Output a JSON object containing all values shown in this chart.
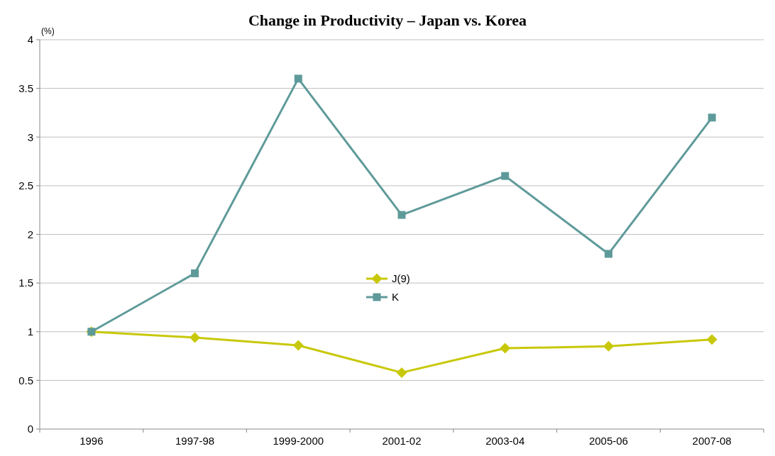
{
  "chart_data": {
    "type": "line",
    "title": "Change in Productivity – Japan vs. Korea",
    "ylabel": "(%)",
    "categories": [
      "1996",
      "1997-98",
      "1999-2000",
      "2001-02",
      "2003-04",
      "2005-06",
      "2007-08"
    ],
    "series": [
      {
        "name": "J(9)",
        "color": "#c8c80a",
        "marker": "diamond",
        "values": [
          1.0,
          0.94,
          0.86,
          0.58,
          0.83,
          0.85,
          0.92
        ]
      },
      {
        "name": "K",
        "color": "#5f9a9a",
        "marker": "square",
        "values": [
          1.0,
          1.6,
          3.6,
          2.2,
          2.6,
          1.8,
          3.2
        ]
      }
    ],
    "ylim": [
      0,
      4
    ],
    "yticks": [
      0,
      0.5,
      1,
      1.5,
      2,
      2.5,
      3,
      3.5,
      4
    ],
    "grid": "y",
    "legend": "center"
  }
}
